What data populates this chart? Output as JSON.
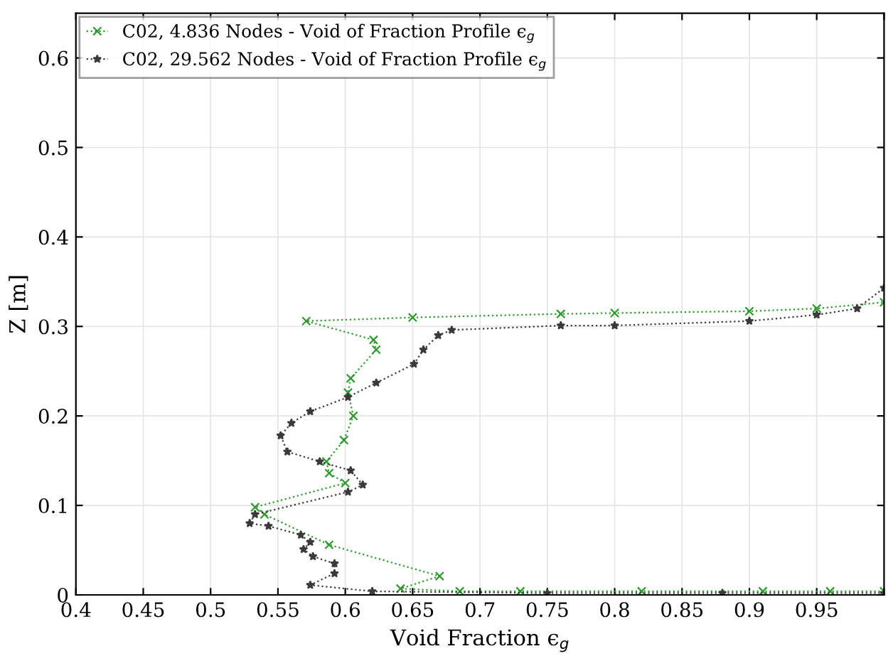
{
  "chart_data": {
    "type": "line",
    "xlabel": "Void Fraction ϵ$_{g}$",
    "ylabel": "Z [m]",
    "xlim": [
      0.4,
      1.0
    ],
    "xticks": [
      0.4,
      0.45,
      0.5,
      0.55,
      0.6,
      0.65,
      0.7,
      0.75,
      0.8,
      0.85,
      0.9,
      0.95,
      {
        "value": 1.0,
        "label": null
      }
    ],
    "ylim": [
      0,
      0.65
    ],
    "yticks": [
      0,
      0.1,
      0.2,
      0.3,
      0.4,
      0.5,
      0.6
    ],
    "grid": true,
    "legend": "top left",
    "line_style": "dotted",
    "series": [
      {
        "name": "C02, 4.836 Nodes - Void of Fraction Profile ϵ$_{g}$",
        "color": "#2e9a2e",
        "marker": "cross",
        "x": [
          1.0,
          0.96,
          0.91,
          0.82,
          0.73,
          0.685,
          0.641,
          0.67,
          0.588,
          0.54,
          0.533,
          0.6,
          0.588,
          0.586,
          0.599,
          0.606,
          0.602,
          0.604,
          0.623,
          0.621,
          0.571,
          0.65,
          0.76,
          0.8,
          0.9,
          0.95,
          1.0
        ],
        "values": [
          0.004,
          0.004,
          0.004,
          0.004,
          0.004,
          0.004,
          0.007,
          0.021,
          0.056,
          0.09,
          0.098,
          0.125,
          0.136,
          0.149,
          0.173,
          0.2,
          0.226,
          0.242,
          0.274,
          0.285,
          0.306,
          0.31,
          0.314,
          0.315,
          0.317,
          0.32,
          0.327
        ]
      },
      {
        "name": "C02, 29.562 Nodes - Void of Fraction Profile ϵ$_{g}$",
        "color": "#3a3a3a",
        "marker": "star",
        "x": [
          1.0,
          0.88,
          0.75,
          0.62,
          0.574,
          0.592,
          0.592,
          0.576,
          0.569,
          0.574,
          0.567,
          0.543,
          0.529,
          0.533,
          0.602,
          0.613,
          0.604,
          0.581,
          0.557,
          0.552,
          0.56,
          0.574,
          0.602,
          0.623,
          0.651,
          0.658,
          0.669,
          0.679,
          0.76,
          0.8,
          0.9,
          0.95,
          0.98,
          1.0
        ],
        "values": [
          0.002,
          0.002,
          0.002,
          0.004,
          0.011,
          0.024,
          0.035,
          0.043,
          0.051,
          0.059,
          0.067,
          0.077,
          0.08,
          0.09,
          0.115,
          0.123,
          0.139,
          0.149,
          0.16,
          0.178,
          0.192,
          0.205,
          0.221,
          0.237,
          0.258,
          0.274,
          0.29,
          0.296,
          0.301,
          0.301,
          0.306,
          0.313,
          0.32,
          0.343
        ]
      }
    ]
  }
}
